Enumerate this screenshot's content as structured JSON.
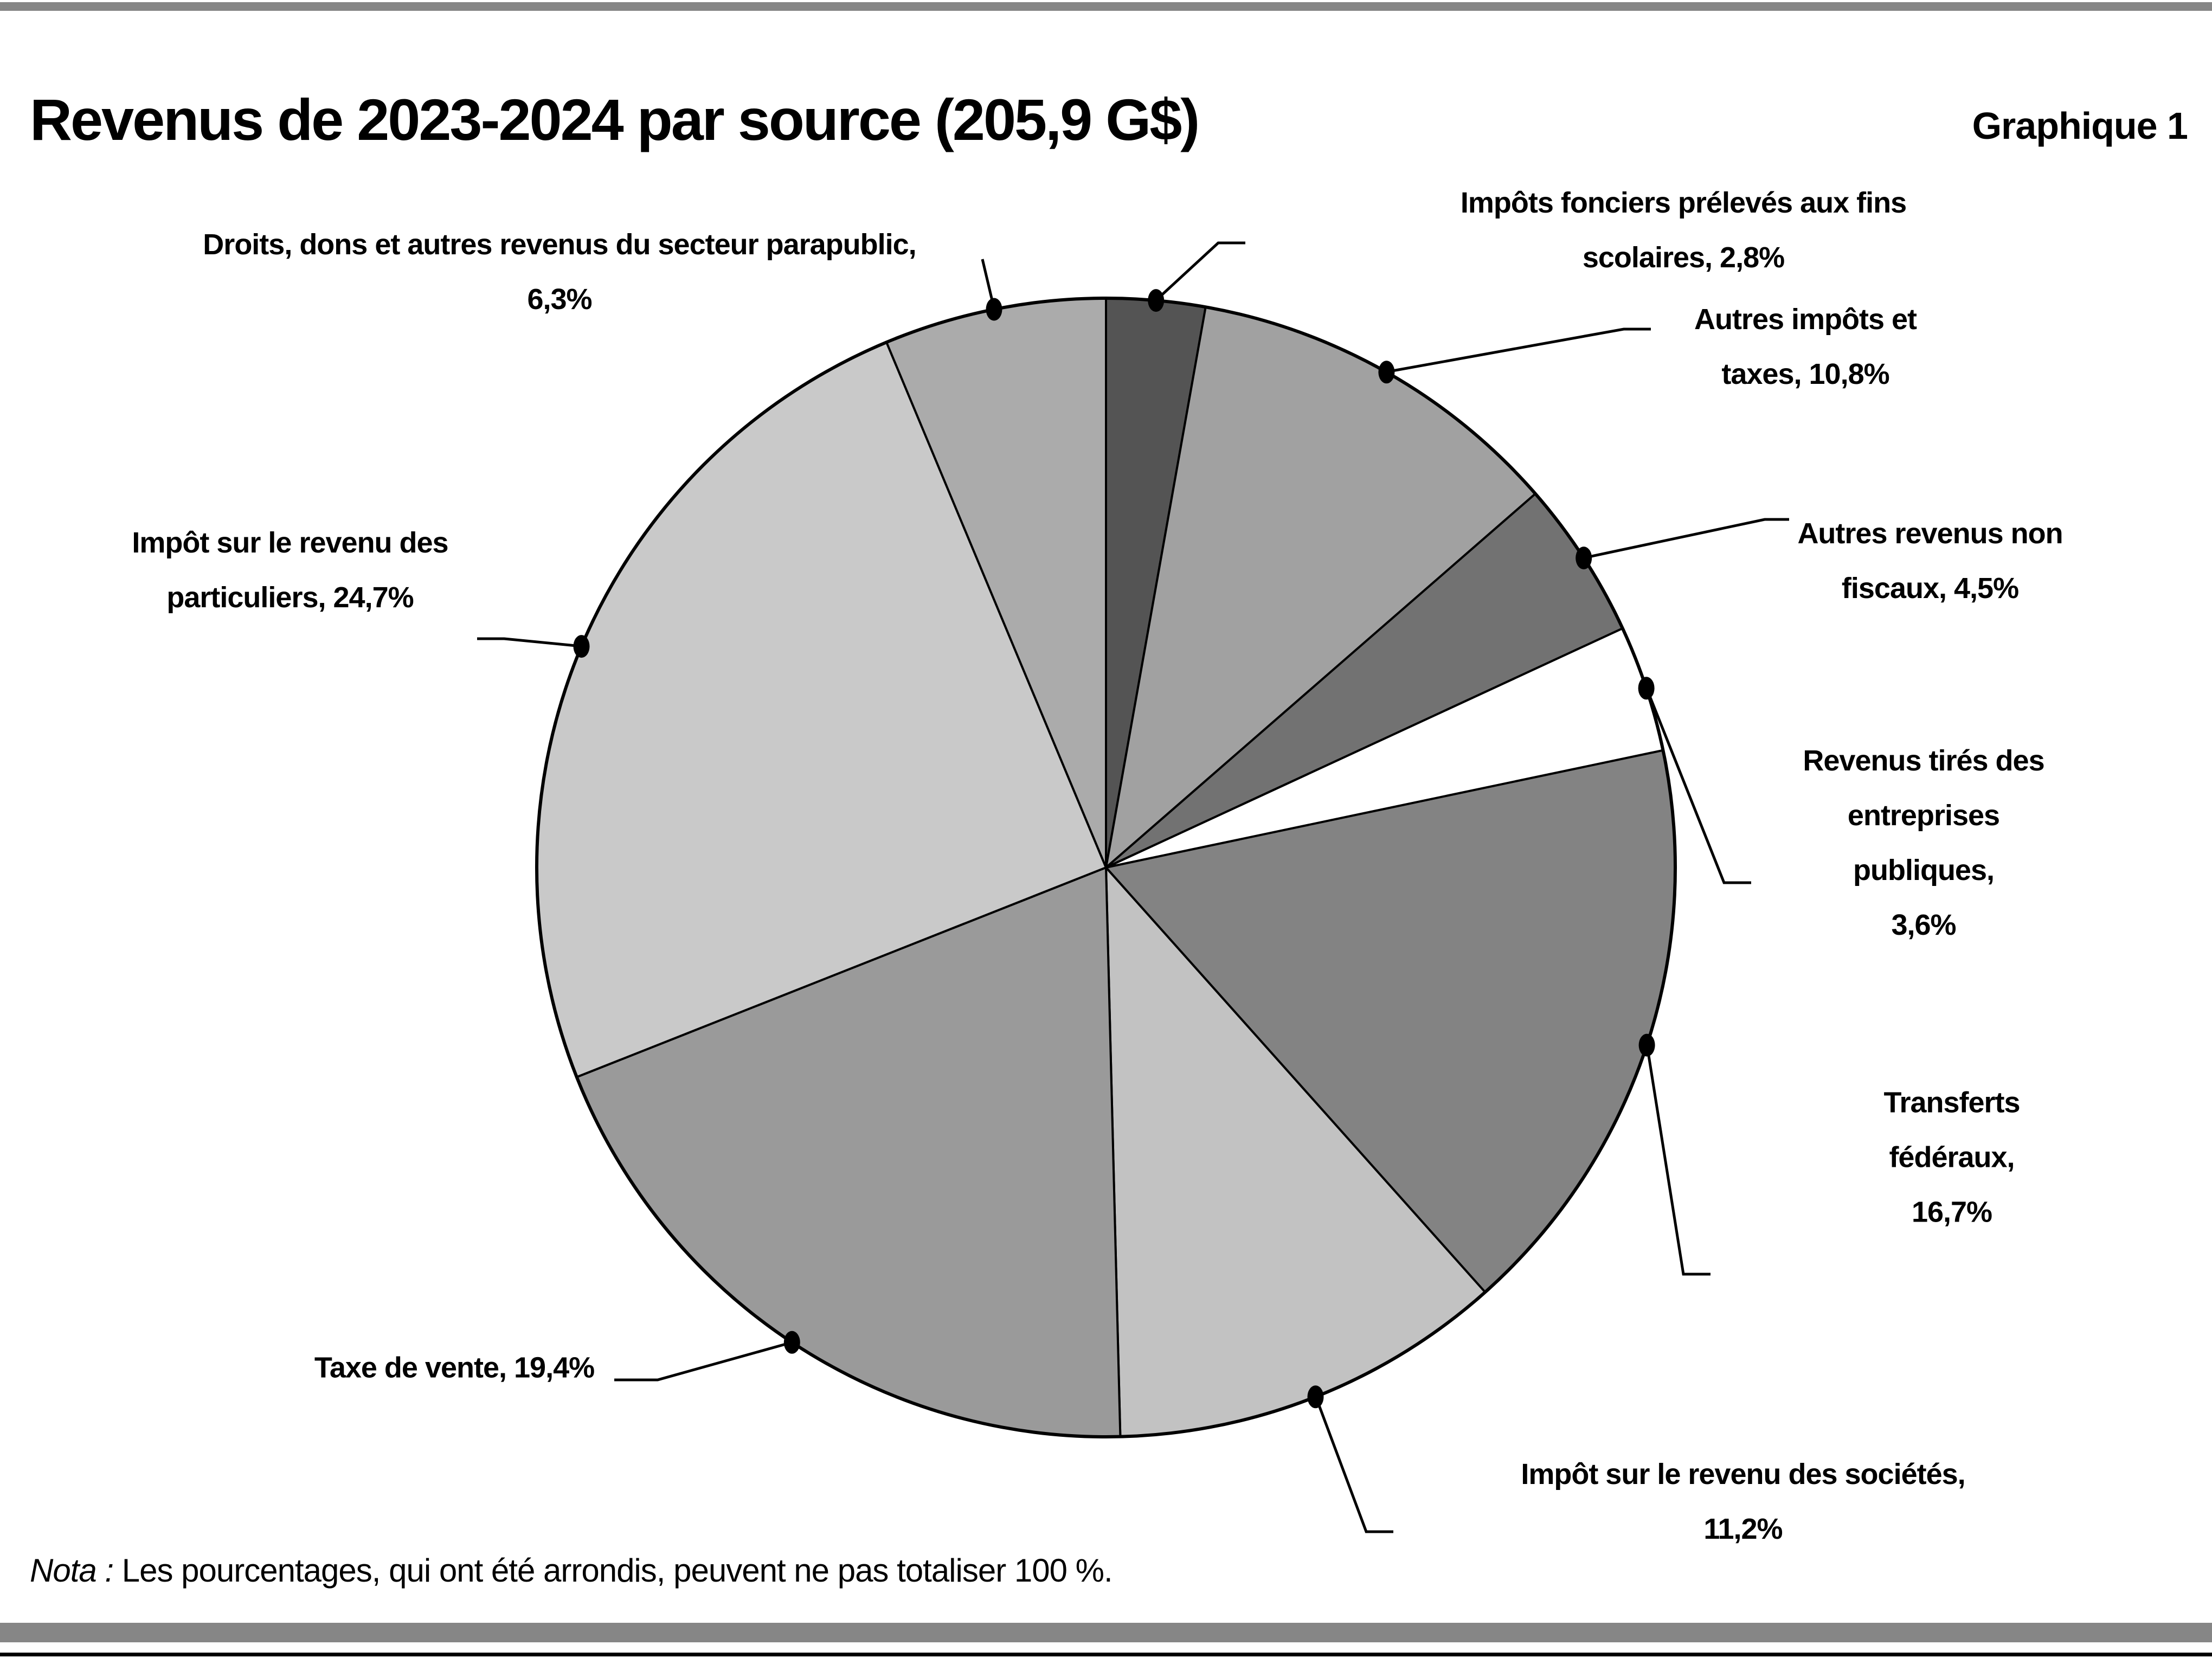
{
  "page": {
    "title": "Revenus de 2023-2024 par source (205,9 G$)",
    "graph_label": "Graphique 1",
    "note_prefix": "Nota :",
    "note_text": "Les pourcentages, qui ont été arrondis, peuvent ne pas totaliser 100 %.",
    "colors": {
      "rule_gray": "#868686",
      "background": "#ffffff",
      "stroke": "#000000"
    }
  },
  "chart_data": {
    "type": "pie",
    "title": "Revenus de 2023-2024 par source (205,9 G$)",
    "total": "205,9 G$",
    "value_unit": "%",
    "start_angle_deg": -90,
    "direction": "clockwise",
    "legend_position": "callout-labels",
    "slices": [
      {
        "id": "impots-fonciers-scolaires",
        "label": "Impôts fonciers prélevés aux fins scolaires",
        "value": 2.8,
        "callout": "Impôts fonciers prélevés aux fins scolaires, 2,8%",
        "color": "#545454"
      },
      {
        "id": "autres-impots-taxes",
        "label": "Autres impôts et taxes",
        "value": 10.8,
        "callout": "Autres impôts et\ntaxes, 10,8%",
        "color": "#a1a1a1"
      },
      {
        "id": "autres-revenus-non-fiscaux",
        "label": "Autres revenus non fiscaux",
        "value": 4.5,
        "callout": "Autres revenus non\nfiscaux, 4,5%",
        "color": "#727272"
      },
      {
        "id": "revenus-entreprises-publiques",
        "label": "Revenus tirés des entreprises publiques",
        "value": 3.6,
        "callout": "Revenus tirés des\nentreprises publiques,\n3,6%",
        "color": "#ffffff"
      },
      {
        "id": "transferts-federaux",
        "label": "Transferts fédéraux",
        "value": 16.7,
        "callout": "Transferts fédéraux,\n16,7%",
        "color": "#838383"
      },
      {
        "id": "impot-revenu-societes",
        "label": "Impôt sur le revenu des sociétés",
        "value": 11.2,
        "callout": "Impôt sur le revenu des sociétés, 11,2%",
        "color": "#c2c2c2"
      },
      {
        "id": "taxe-de-vente",
        "label": "Taxe de vente",
        "value": 19.4,
        "callout": "Taxe de vente, 19,4%",
        "color": "#9a9a9a"
      },
      {
        "id": "impot-revenu-particuliers",
        "label": "Impôt sur le revenu des particuliers",
        "value": 24.7,
        "callout": "Impôt sur le revenu des\nparticuliers, 24,7%",
        "color": "#c9c9c9"
      },
      {
        "id": "droits-dons-parapublic",
        "label": "Droits, dons et autres revenus du secteur parapublic",
        "value": 6.3,
        "callout": "Droits, dons et autres revenus du secteur parapublic,\n6,3%",
        "color": "#ababab"
      }
    ]
  }
}
